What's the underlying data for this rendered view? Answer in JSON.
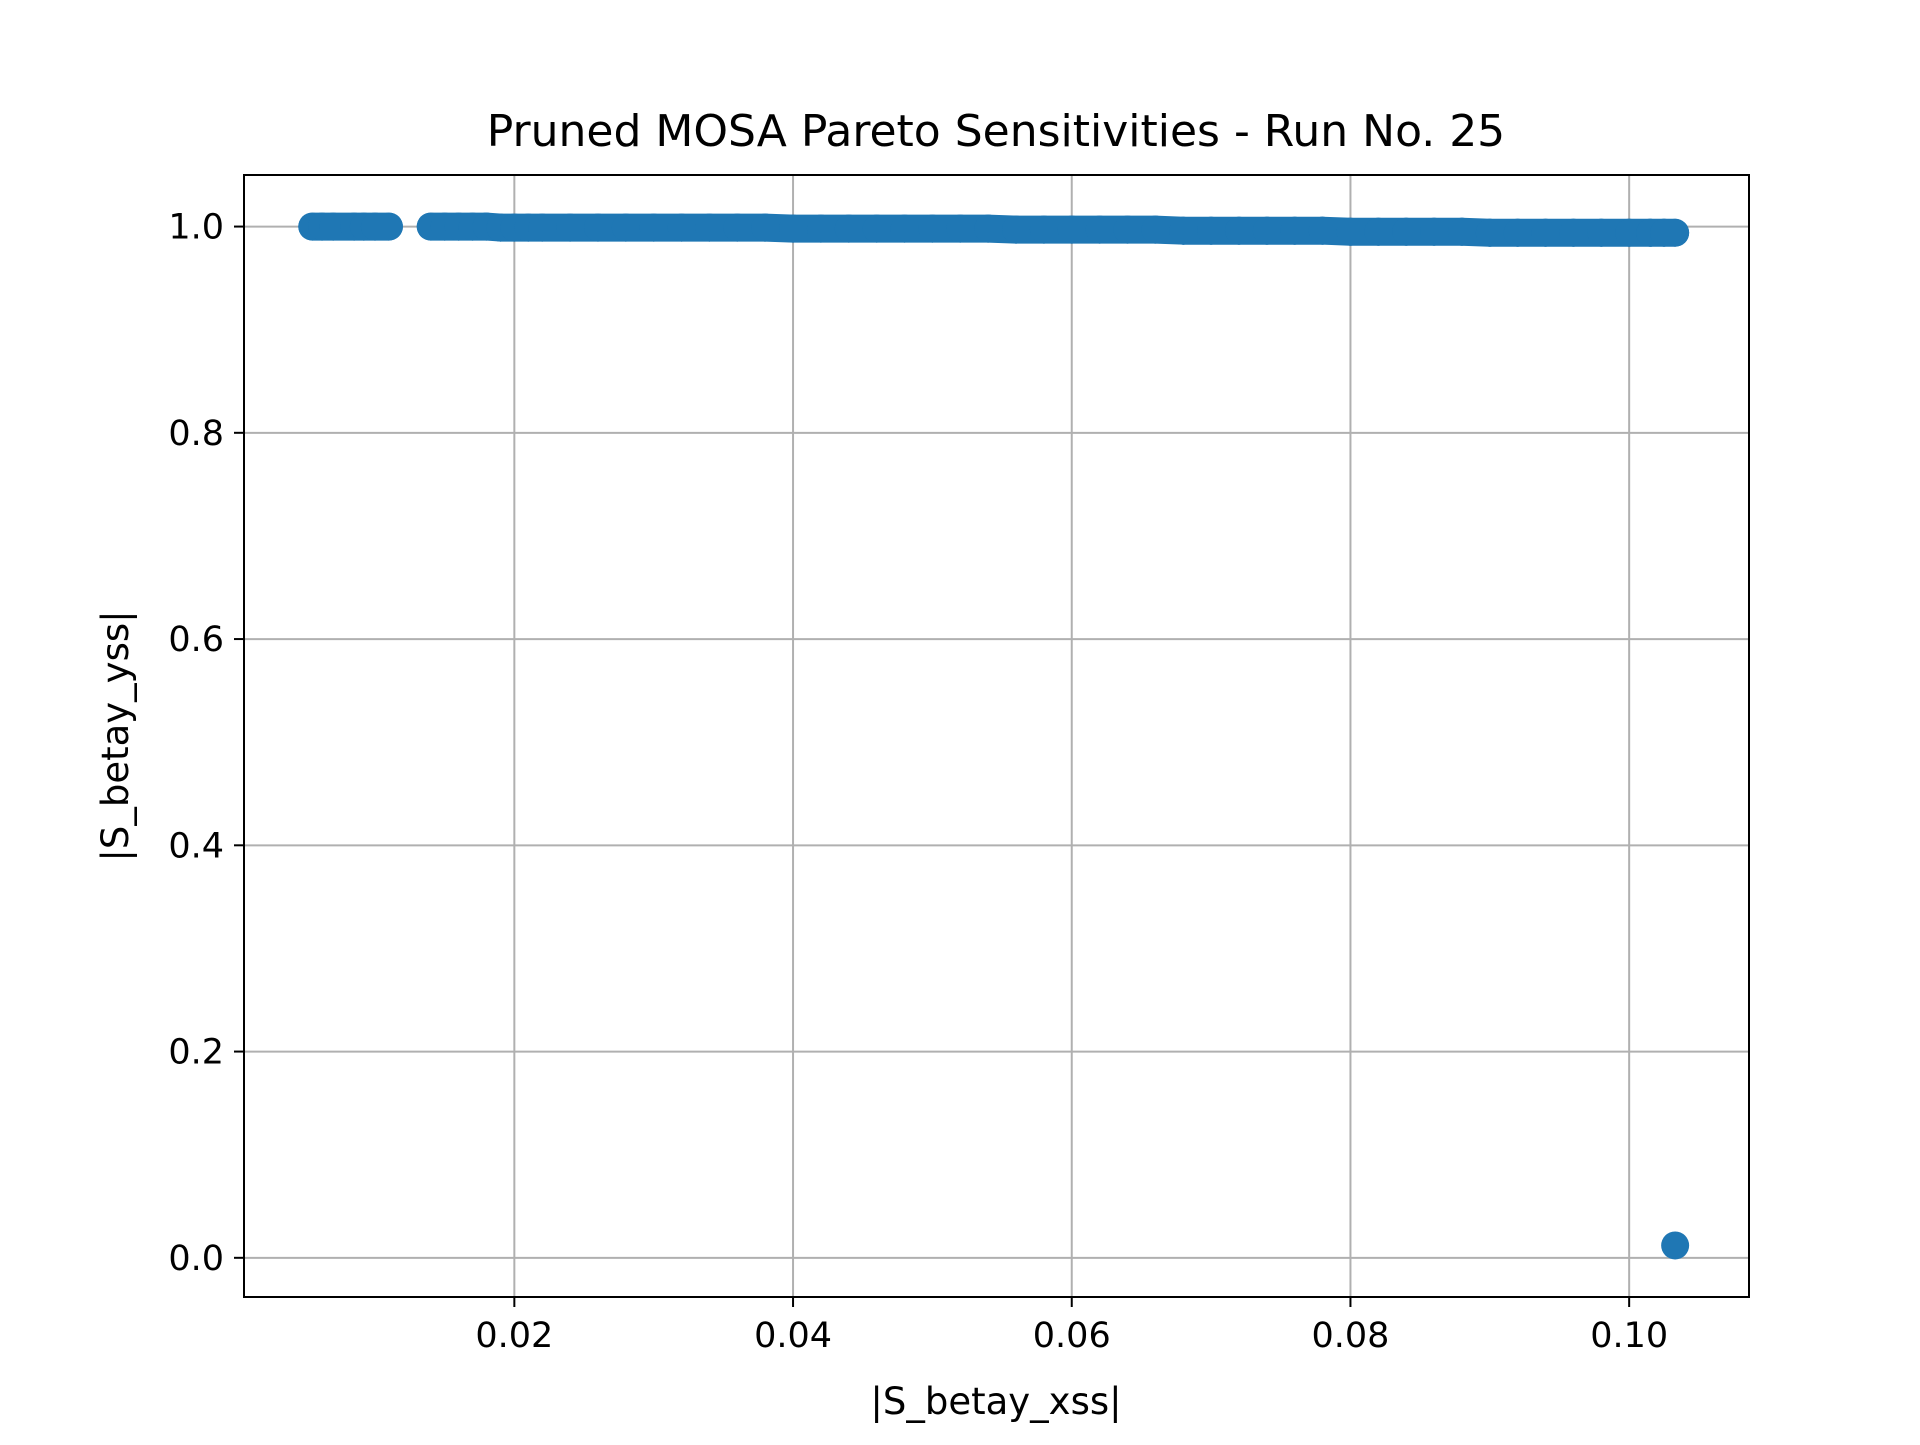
{
  "chart_data": {
    "type": "scatter",
    "title": "Pruned MOSA Pareto Sensitivities - Run No. 25",
    "xlabel": "|S_betay_xss|",
    "ylabel": "|S_betay_yss|",
    "xlim": [
      0.0006,
      0.1086
    ],
    "ylim": [
      -0.038,
      1.05
    ],
    "xticks": [
      "0.02",
      "0.04",
      "0.06",
      "0.08",
      "0.10"
    ],
    "xtick_values": [
      0.02,
      0.04,
      0.06,
      0.08,
      0.1
    ],
    "yticks": [
      "0.0",
      "0.2",
      "0.4",
      "0.6",
      "0.8",
      "1.0"
    ],
    "ytick_values": [
      0.0,
      0.2,
      0.4,
      0.6,
      0.8,
      1.0
    ],
    "grid": true,
    "marker_color": "#1f77b4",
    "series": [
      {
        "x": [
          0.0055,
          0.0062,
          0.007,
          0.0085,
          0.0092,
          0.01,
          0.011,
          0.014,
          0.015,
          0.016,
          0.017,
          0.018,
          0.019,
          0.02,
          0.021,
          0.022,
          0.024,
          0.026,
          0.028,
          0.03,
          0.032,
          0.034,
          0.036,
          0.038,
          0.04,
          0.042,
          0.044,
          0.046,
          0.048,
          0.05,
          0.052,
          0.054,
          0.056,
          0.058,
          0.06,
          0.062,
          0.064,
          0.066,
          0.068,
          0.07,
          0.072,
          0.074,
          0.076,
          0.078,
          0.08,
          0.082,
          0.084,
          0.086,
          0.088,
          0.09,
          0.092,
          0.094,
          0.096,
          0.098,
          0.1,
          0.1015,
          0.1025,
          0.1033,
          0.1033
        ],
        "y": [
          1.0,
          1.0,
          1.0,
          1.0,
          1.0,
          1.0,
          1.0,
          1.0,
          1.0,
          1.0,
          1.0,
          1.0,
          0.999,
          0.999,
          0.999,
          0.999,
          0.999,
          0.999,
          0.999,
          0.999,
          0.999,
          0.999,
          0.999,
          0.999,
          0.998,
          0.998,
          0.998,
          0.998,
          0.998,
          0.998,
          0.998,
          0.998,
          0.997,
          0.997,
          0.997,
          0.997,
          0.997,
          0.997,
          0.996,
          0.996,
          0.996,
          0.996,
          0.996,
          0.996,
          0.995,
          0.995,
          0.995,
          0.995,
          0.995,
          0.994,
          0.994,
          0.994,
          0.994,
          0.994,
          0.994,
          0.994,
          0.994,
          0.994,
          0.012
        ]
      }
    ]
  }
}
